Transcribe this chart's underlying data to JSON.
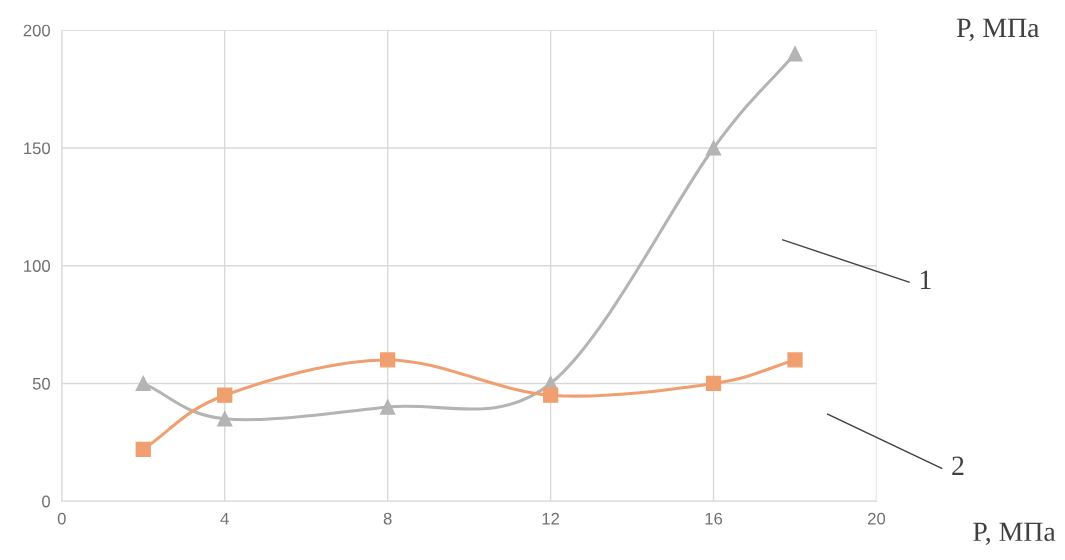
{
  "chart_data": {
    "type": "line",
    "xlabel": "P, МПа",
    "ylabel": "P, МПа",
    "xlim": [
      0,
      20
    ],
    "xticks": [
      0,
      4,
      8,
      12,
      16,
      20
    ],
    "ylim": [
      0,
      200
    ],
    "yticks": [
      0,
      50,
      100,
      150,
      200
    ],
    "grid": true,
    "legend": false,
    "series": [
      {
        "name": "1",
        "color": "#b4b4b4",
        "marker": "triangle",
        "x": [
          2,
          4,
          8,
          12,
          16,
          18
        ],
        "values": [
          50,
          35,
          40,
          50,
          150,
          190
        ]
      },
      {
        "name": "2",
        "color": "#f0a070",
        "marker": "square",
        "x": [
          2,
          4,
          8,
          12,
          16,
          18
        ],
        "values": [
          22,
          45,
          60,
          45,
          50,
          60
        ]
      }
    ]
  }
}
